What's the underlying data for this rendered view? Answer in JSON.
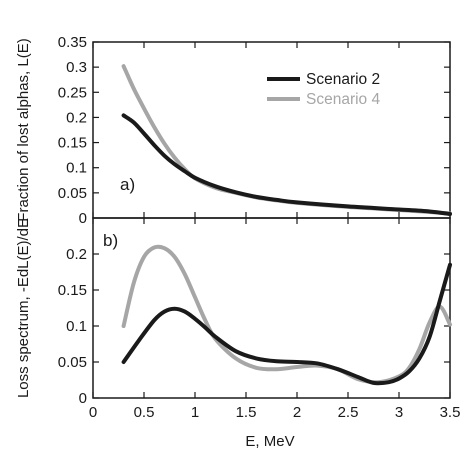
{
  "chart_data": [
    {
      "panel": "a)",
      "type": "line",
      "title": "",
      "xlabel": "",
      "ylabel": "Fraction of lost alphas, L(E)",
      "xlim": [
        0,
        3.5
      ],
      "ylim": [
        0,
        0.35
      ],
      "yticks": [
        0,
        0.05,
        0.1,
        0.15,
        0.2,
        0.25,
        0.3,
        0.35
      ],
      "ytick_labels": [
        "0",
        "0.05",
        "0.1",
        "0.15",
        "0.2",
        "0.25",
        "0.3",
        "0.35"
      ],
      "grid": false,
      "legend_position": "top-right",
      "series": [
        {
          "name": "Scenario 2",
          "color": "#1a1a1a",
          "x": [
            0.3,
            0.4,
            0.5,
            0.6,
            0.7,
            0.8,
            0.9,
            1.0,
            1.2,
            1.4,
            1.6,
            1.8,
            2.0,
            2.5,
            3.0,
            3.3,
            3.5
          ],
          "y": [
            0.204,
            0.19,
            0.168,
            0.145,
            0.124,
            0.107,
            0.093,
            0.08,
            0.063,
            0.051,
            0.042,
            0.036,
            0.031,
            0.023,
            0.017,
            0.013,
            0.008
          ]
        },
        {
          "name": "Scenario 4",
          "color": "#a6a6a6",
          "x": [
            0.3,
            0.4,
            0.5,
            0.6,
            0.7,
            0.8,
            0.9,
            1.0,
            1.2,
            1.4,
            1.6,
            1.8,
            2.0,
            2.5,
            3.0,
            3.3,
            3.5
          ],
          "y": [
            0.302,
            0.257,
            0.218,
            0.181,
            0.148,
            0.12,
            0.097,
            0.079,
            0.06,
            0.05,
            0.041,
            0.035,
            0.03,
            0.022,
            0.016,
            0.012,
            0.009
          ]
        }
      ]
    },
    {
      "panel": "b)",
      "type": "line",
      "title": "",
      "xlabel": "E, MeV",
      "ylabel": "Loss spectrum, -EdL(E)/dE",
      "xlim": [
        0,
        3.5
      ],
      "ylim": [
        0,
        0.25
      ],
      "xticks": [
        0,
        0.5,
        1,
        1.5,
        2,
        2.5,
        3,
        3.5
      ],
      "xtick_labels": [
        "0",
        "0.5",
        "1",
        "1.5",
        "2",
        "2.5",
        "3",
        "3.5"
      ],
      "yticks": [
        0,
        0.05,
        0.1,
        0.15,
        0.2
      ],
      "ytick_labels": [
        "0",
        "0.05",
        "0.1",
        "0.15",
        "0.2"
      ],
      "grid": false,
      "series": [
        {
          "name": "Scenario 2",
          "color": "#1a1a1a",
          "x": [
            0.3,
            0.45,
            0.6,
            0.7,
            0.8,
            0.9,
            1.0,
            1.1,
            1.2,
            1.4,
            1.6,
            1.8,
            2.0,
            2.2,
            2.4,
            2.6,
            2.75,
            2.9,
            3.0,
            3.1,
            3.2,
            3.3,
            3.4,
            3.5
          ],
          "y": [
            0.05,
            0.08,
            0.108,
            0.12,
            0.124,
            0.12,
            0.11,
            0.098,
            0.085,
            0.065,
            0.055,
            0.051,
            0.05,
            0.048,
            0.04,
            0.029,
            0.021,
            0.022,
            0.027,
            0.037,
            0.055,
            0.085,
            0.135,
            0.185
          ]
        },
        {
          "name": "Scenario 4",
          "color": "#a6a6a6",
          "x": [
            0.3,
            0.4,
            0.5,
            0.6,
            0.7,
            0.8,
            0.9,
            1.0,
            1.1,
            1.2,
            1.4,
            1.6,
            1.8,
            2.0,
            2.2,
            2.4,
            2.6,
            2.8,
            3.0,
            3.1,
            3.2,
            3.3,
            3.4,
            3.5
          ],
          "y": [
            0.1,
            0.16,
            0.196,
            0.209,
            0.208,
            0.196,
            0.172,
            0.14,
            0.108,
            0.082,
            0.055,
            0.042,
            0.04,
            0.043,
            0.045,
            0.04,
            0.026,
            0.022,
            0.03,
            0.042,
            0.068,
            0.105,
            0.127,
            0.102
          ]
        }
      ]
    }
  ]
}
